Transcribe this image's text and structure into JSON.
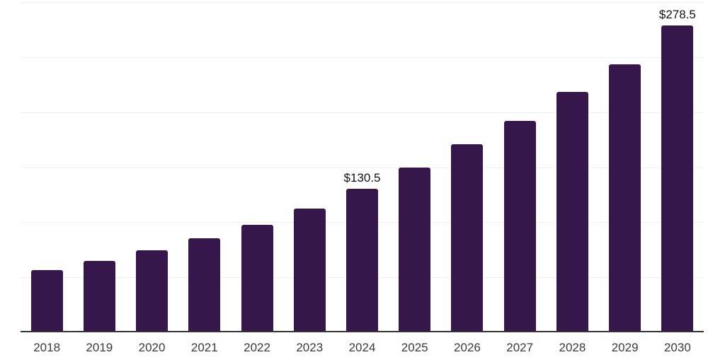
{
  "chart_data": {
    "type": "bar",
    "title": "",
    "xlabel": "",
    "ylabel": "",
    "categories": [
      "2018",
      "2019",
      "2020",
      "2021",
      "2022",
      "2023",
      "2024",
      "2025",
      "2026",
      "2027",
      "2028",
      "2029",
      "2030"
    ],
    "values": [
      56.6,
      64.7,
      74.3,
      85.6,
      97.4,
      112.4,
      130.5,
      149.9,
      170.7,
      192.1,
      218.4,
      243.7,
      278.5
    ],
    "data_labels": {
      "2024": "$130.5",
      "2030": "$278.5"
    },
    "ylim": [
      0,
      300
    ],
    "gridline_step": 50,
    "grid": true,
    "legend": false,
    "y_axis_tick_labels_visible": false,
    "colors": {
      "bar": "#36164B",
      "background": "#ffffff",
      "gridline": "#efefef",
      "axis_line": "#333333",
      "x_tick_label": "#3a3a3a",
      "value_label": "#111111"
    }
  }
}
